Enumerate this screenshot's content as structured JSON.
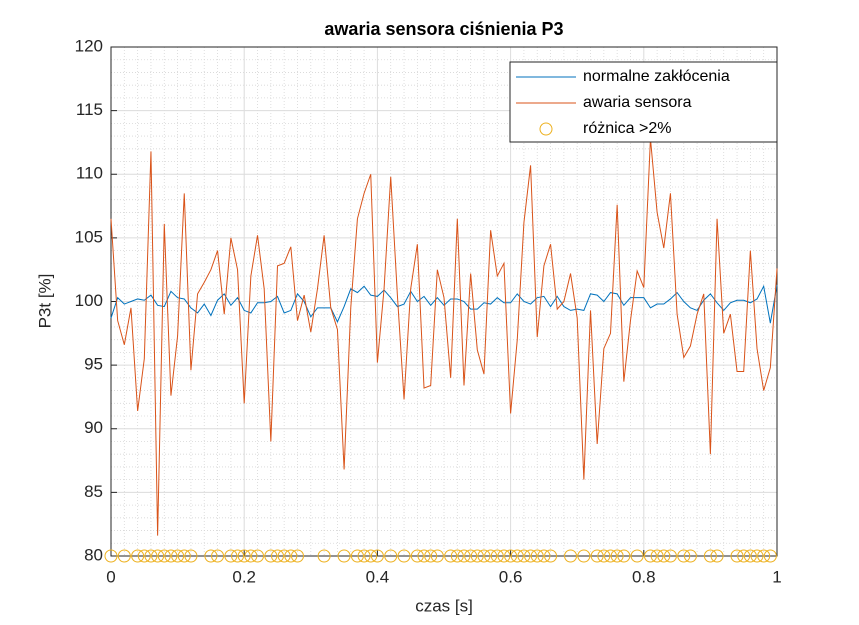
{
  "chart_data": {
    "type": "line",
    "title": "awaria sensora ciśnienia P3",
    "xlabel": "czas [s]",
    "ylabel": "P3t [%]",
    "x": [
      0,
      0.01,
      0.02,
      0.03,
      0.04,
      0.05,
      0.06,
      0.07,
      0.08,
      0.09,
      0.1,
      0.11,
      0.12,
      0.13,
      0.14,
      0.15,
      0.16,
      0.17,
      0.18,
      0.19,
      0.2,
      0.21,
      0.22,
      0.23,
      0.24,
      0.25,
      0.26,
      0.27,
      0.28,
      0.29,
      0.3,
      0.31,
      0.32,
      0.33,
      0.34,
      0.35,
      0.36,
      0.37,
      0.38,
      0.39,
      0.4,
      0.41,
      0.42,
      0.43,
      0.44,
      0.45,
      0.46,
      0.47,
      0.48,
      0.49,
      0.5,
      0.51,
      0.52,
      0.53,
      0.54,
      0.55,
      0.56,
      0.57,
      0.58,
      0.59,
      0.6,
      0.61,
      0.62,
      0.63,
      0.64,
      0.65,
      0.66,
      0.67,
      0.68,
      0.69,
      0.7,
      0.71,
      0.72,
      0.73,
      0.74,
      0.75,
      0.76,
      0.77,
      0.78,
      0.79,
      0.8,
      0.81,
      0.82,
      0.83,
      0.84,
      0.85,
      0.86,
      0.87,
      0.88,
      0.89,
      0.9,
      0.91,
      0.92,
      0.93,
      0.94,
      0.95,
      0.96,
      0.97,
      0.98,
      0.99,
      1
    ],
    "series": [
      {
        "name": "normalne zakłócenia",
        "color": "#0072BD",
        "values": [
          98.7,
          100.3,
          99.8,
          100.0,
          100.2,
          100.1,
          100.5,
          99.7,
          99.6,
          100.8,
          100.3,
          100.2,
          99.5,
          99.1,
          99.8,
          98.9,
          100.1,
          100.6,
          99.7,
          100.3,
          99.3,
          99.1,
          99.9,
          99.9,
          100.0,
          100.4,
          99.1,
          99.3,
          100.6,
          100.0,
          98.8,
          99.5,
          99.5,
          99.5,
          98.4,
          99.6,
          101.0,
          100.7,
          101.2,
          100.5,
          100.4,
          100.9,
          100.3,
          99.6,
          99.8,
          100.8,
          100.0,
          100.4,
          99.7,
          100.3,
          99.7,
          100.2,
          100.2,
          100.0,
          99.4,
          99.4,
          99.9,
          99.8,
          100.3,
          99.9,
          99.9,
          100.6,
          100.0,
          99.8,
          100.3,
          100.4,
          99.6,
          100.4,
          99.6,
          99.3,
          99.4,
          99.3,
          100.6,
          100.5,
          100.0,
          100.7,
          100.6,
          99.7,
          100.3,
          100.3,
          100.3,
          99.5,
          99.8,
          99.8,
          100.2,
          100.7,
          100.0,
          99.5,
          99.3,
          100.1,
          100.6,
          99.9,
          99.3,
          99.9,
          100.1,
          100.1,
          99.9,
          100.2,
          101.2,
          98.3,
          101.3
        ]
      },
      {
        "name": "awaria sensora",
        "color": "#D95319",
        "values": [
          106.5,
          98.5,
          96.6,
          99.5,
          91.4,
          95.5,
          111.8,
          81.6,
          106.1,
          92.6,
          97.3,
          108.5,
          94.6,
          100.6,
          101.5,
          102.5,
          104.0,
          99.0,
          105.0,
          102.5,
          92.0,
          102.0,
          105.2,
          101.0,
          89.0,
          102.8,
          103.0,
          104.3,
          98.5,
          100.5,
          97.6,
          101.0,
          105.2,
          99.5,
          97.8,
          86.8,
          99.5,
          106.5,
          108.5,
          110.0,
          95.2,
          101.0,
          109.8,
          100.5,
          92.3,
          101.0,
          104.5,
          93.2,
          93.4,
          102.5,
          100.3,
          94.0,
          106.5,
          93.4,
          102.2,
          96.2,
          94.3,
          105.6,
          102.0,
          103.0,
          91.2,
          97.0,
          106.2,
          110.7,
          97.2,
          102.8,
          104.5,
          99.4,
          100.0,
          102.2,
          98.7,
          86.0,
          99.3,
          88.8,
          96.3,
          97.5,
          107.6,
          93.7,
          98.5,
          102.4,
          101.1,
          112.8,
          107.0,
          104.2,
          108.5,
          99.0,
          95.6,
          96.5,
          99.0,
          100.6,
          88.0,
          106.5,
          97.5,
          99.0,
          94.5,
          94.5,
          104.0,
          96.3,
          93.0,
          94.8,
          102.6
        ]
      },
      {
        "name": "różnica >2%",
        "color": "#EDB120",
        "marker": "circle",
        "x": [
          0,
          0.02,
          0.04,
          0.05,
          0.06,
          0.07,
          0.08,
          0.09,
          0.1,
          0.11,
          0.12,
          0.15,
          0.16,
          0.18,
          0.19,
          0.2,
          0.21,
          0.22,
          0.24,
          0.25,
          0.26,
          0.27,
          0.28,
          0.32,
          0.35,
          0.37,
          0.38,
          0.39,
          0.4,
          0.42,
          0.44,
          0.46,
          0.47,
          0.48,
          0.49,
          0.51,
          0.52,
          0.53,
          0.54,
          0.55,
          0.56,
          0.57,
          0.58,
          0.59,
          0.6,
          0.61,
          0.62,
          0.63,
          0.64,
          0.65,
          0.66,
          0.69,
          0.71,
          0.73,
          0.74,
          0.75,
          0.76,
          0.77,
          0.79,
          0.81,
          0.82,
          0.83,
          0.84,
          0.86,
          0.87,
          0.9,
          0.91,
          0.94,
          0.95,
          0.96,
          0.97,
          0.98,
          0.99
        ],
        "values": [
          80,
          80,
          80,
          80,
          80,
          80,
          80,
          80,
          80,
          80,
          80,
          80,
          80,
          80,
          80,
          80,
          80,
          80,
          80,
          80,
          80,
          80,
          80,
          80,
          80,
          80,
          80,
          80,
          80,
          80,
          80,
          80,
          80,
          80,
          80,
          80,
          80,
          80,
          80,
          80,
          80,
          80,
          80,
          80,
          80,
          80,
          80,
          80,
          80,
          80,
          80,
          80,
          80,
          80,
          80,
          80,
          80,
          80,
          80,
          80,
          80,
          80,
          80,
          80,
          80,
          80,
          80,
          80,
          80,
          80,
          80,
          80,
          80
        ]
      }
    ],
    "xlim": [
      0,
      1
    ],
    "xticks": [
      0,
      0.2,
      0.4,
      0.6,
      0.8,
      1
    ],
    "ylim": [
      80,
      120
    ],
    "yticks": [
      80,
      85,
      90,
      95,
      100,
      105,
      110,
      115,
      120
    ],
    "grid": true,
    "minor_grid": true,
    "legend": "northeast"
  }
}
